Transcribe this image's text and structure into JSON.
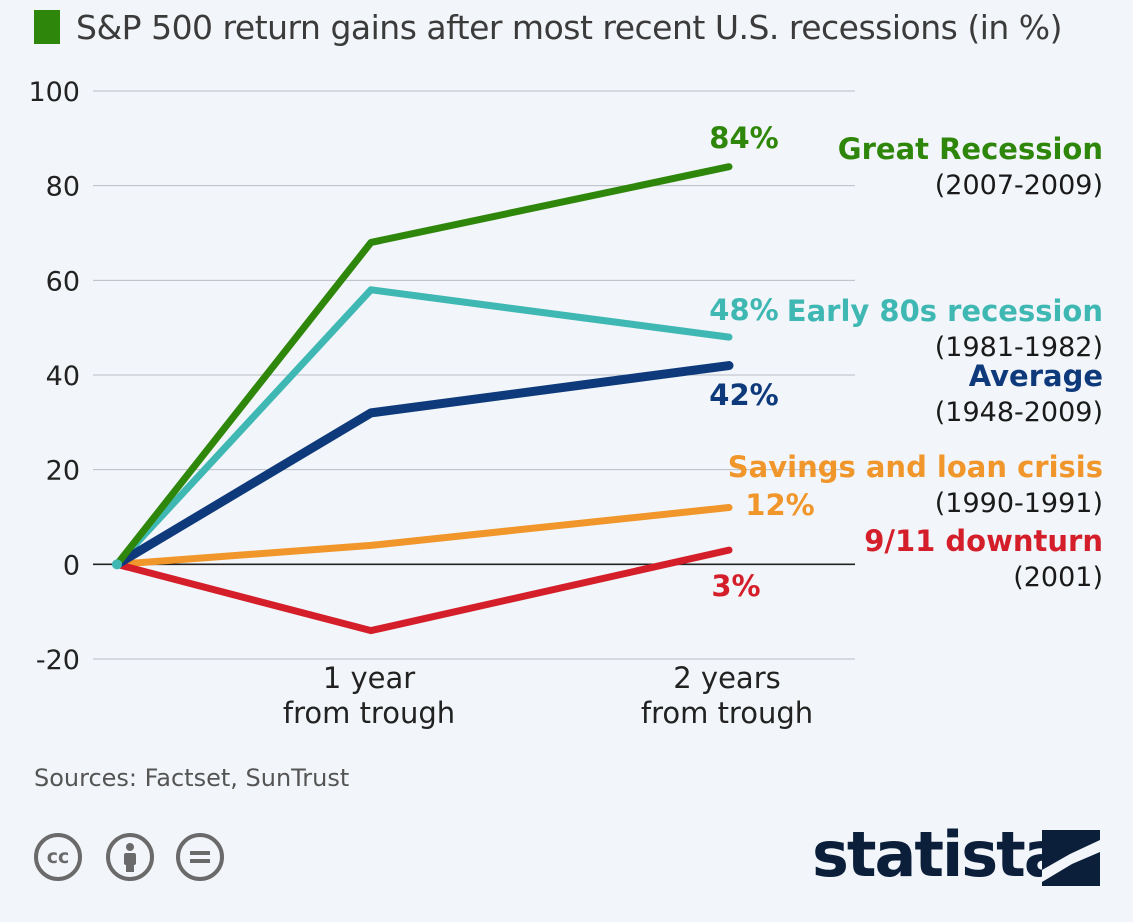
{
  "title": "S&P 500 return gains after most recent U.S. recessions (in %)",
  "source": "Sources: Factset, SunTrust",
  "brand": "statista",
  "icons": [
    "cc-icon",
    "by-icon",
    "nd-icon"
  ],
  "chart_data": {
    "type": "line",
    "categories": [
      "",
      "1 year\nfrom trough",
      "2 years\nfrom trough"
    ],
    "ylim": [
      -20,
      100
    ],
    "yticks": [
      -20,
      0,
      20,
      40,
      60,
      80,
      100
    ],
    "ytick_labels": [
      "-20",
      "0",
      "20",
      "40",
      "60",
      "80",
      "100"
    ],
    "xtick_labels": [
      [
        "1 year",
        "from trough"
      ],
      [
        "2 years",
        "from trough"
      ]
    ],
    "grid": true,
    "series": [
      {
        "name": "Great Recession",
        "period": "(2007-2009)",
        "values": [
          0,
          68,
          84
        ],
        "end_label": "84%",
        "color": "#2e870a"
      },
      {
        "name": "Early 80s recession",
        "period": "(1981-1982)",
        "values": [
          0,
          58,
          48
        ],
        "end_label": "48%",
        "color": "#3fb8b4"
      },
      {
        "name": "Average",
        "period": "(1948-2009)",
        "values": [
          0,
          32,
          42
        ],
        "end_label": "42%",
        "color": "#0e3a7c"
      },
      {
        "name": "Savings and loan crisis",
        "period": "(1990-1991)",
        "values": [
          0,
          4,
          12
        ],
        "end_label": "12%",
        "color": "#f0962a"
      },
      {
        "name": "9/11 downturn",
        "period": "(2001)",
        "values": [
          0,
          -14,
          3
        ],
        "end_label": "3%",
        "color": "#d41f2b"
      }
    ]
  }
}
